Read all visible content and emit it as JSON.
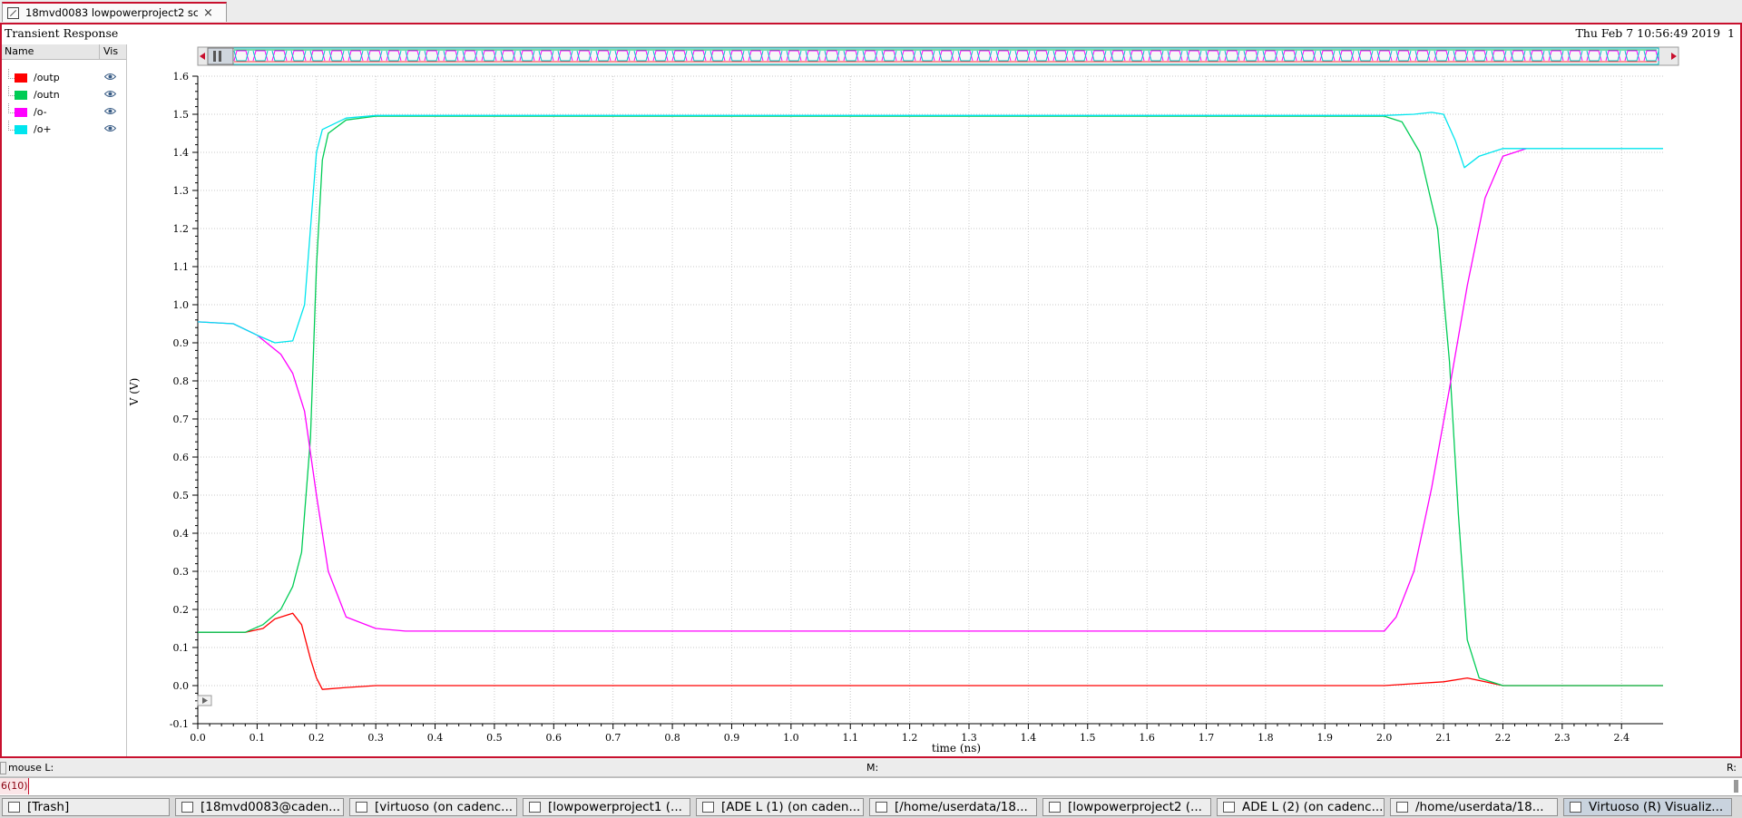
{
  "tab": {
    "title": "18mvd0083 lowpowerproject2 sc...",
    "close": "×"
  },
  "header": {
    "title": "Transient Response",
    "timestamp": "Thu Feb 7 10:56:49 2019",
    "subwin": "1"
  },
  "legend": {
    "col_name": "Name",
    "col_vis": "Vis",
    "items": [
      {
        "name": "/outp",
        "color": "#ff0000"
      },
      {
        "name": "/outn",
        "color": "#00cc55"
      },
      {
        "name": "/o-",
        "color": "#ff00ff"
      },
      {
        "name": "/o+",
        "color": "#00e5ee"
      }
    ]
  },
  "chart_data": {
    "type": "line",
    "xlabel": "time (ns)",
    "ylabel": "V (V)",
    "xlim": [
      0,
      2.47
    ],
    "ylim": [
      -0.1,
      1.6
    ],
    "xticks": [
      "0.0",
      "0.1",
      "0.2",
      "0.3",
      "0.4",
      "0.5",
      "0.6",
      "0.7",
      "0.8",
      "0.9",
      "1.0",
      "1.1",
      "1.2",
      "1.3",
      "1.4",
      "1.5",
      "1.6",
      "1.7",
      "1.8",
      "1.9",
      "2.0",
      "2.1",
      "2.2",
      "2.3",
      "2.4"
    ],
    "yticks": [
      "-0.1",
      "0.0",
      "0.1",
      "0.2",
      "0.3",
      "0.4",
      "0.5",
      "0.6",
      "0.7",
      "0.8",
      "0.9",
      "1.0",
      "1.1",
      "1.2",
      "1.3",
      "1.4",
      "1.5",
      "1.6"
    ],
    "grid": true,
    "series": [
      {
        "name": "/outp",
        "color": "#ff0000",
        "points": [
          [
            0,
            0.14
          ],
          [
            0.08,
            0.14
          ],
          [
            0.11,
            0.15
          ],
          [
            0.13,
            0.175
          ],
          [
            0.16,
            0.19
          ],
          [
            0.175,
            0.16
          ],
          [
            0.19,
            0.07
          ],
          [
            0.2,
            0.02
          ],
          [
            0.21,
            -0.01
          ],
          [
            0.25,
            -0.005
          ],
          [
            0.3,
            0.0
          ],
          [
            2.0,
            0.0
          ],
          [
            2.05,
            0.005
          ],
          [
            2.1,
            0.01
          ],
          [
            2.14,
            0.02
          ],
          [
            2.17,
            0.01
          ],
          [
            2.2,
            0.0
          ],
          [
            2.47,
            0.0
          ]
        ]
      },
      {
        "name": "/outn",
        "color": "#00cc55",
        "points": [
          [
            0,
            0.14
          ],
          [
            0.08,
            0.14
          ],
          [
            0.11,
            0.16
          ],
          [
            0.14,
            0.2
          ],
          [
            0.16,
            0.26
          ],
          [
            0.175,
            0.35
          ],
          [
            0.19,
            0.65
          ],
          [
            0.2,
            1.1
          ],
          [
            0.21,
            1.38
          ],
          [
            0.22,
            1.45
          ],
          [
            0.25,
            1.485
          ],
          [
            0.3,
            1.495
          ],
          [
            2.0,
            1.495
          ],
          [
            2.03,
            1.48
          ],
          [
            2.06,
            1.4
          ],
          [
            2.09,
            1.2
          ],
          [
            2.11,
            0.85
          ],
          [
            2.125,
            0.45
          ],
          [
            2.14,
            0.12
          ],
          [
            2.16,
            0.02
          ],
          [
            2.2,
            0.0
          ],
          [
            2.47,
            0.0
          ]
        ]
      },
      {
        "name": "/o-",
        "color": "#ff00ff",
        "points": [
          [
            0,
            0.955
          ],
          [
            0.06,
            0.95
          ],
          [
            0.1,
            0.92
          ],
          [
            0.14,
            0.87
          ],
          [
            0.16,
            0.82
          ],
          [
            0.18,
            0.72
          ],
          [
            0.2,
            0.5
          ],
          [
            0.22,
            0.3
          ],
          [
            0.25,
            0.18
          ],
          [
            0.3,
            0.15
          ],
          [
            0.35,
            0.143
          ],
          [
            2.0,
            0.143
          ],
          [
            2.02,
            0.18
          ],
          [
            2.05,
            0.3
          ],
          [
            2.08,
            0.52
          ],
          [
            2.11,
            0.78
          ],
          [
            2.14,
            1.05
          ],
          [
            2.17,
            1.28
          ],
          [
            2.2,
            1.39
          ],
          [
            2.24,
            1.41
          ]
        ]
      },
      {
        "name": "/o+",
        "color": "#00e5ee",
        "points": [
          [
            0,
            0.955
          ],
          [
            0.06,
            0.95
          ],
          [
            0.1,
            0.92
          ],
          [
            0.13,
            0.9
          ],
          [
            0.16,
            0.905
          ],
          [
            0.18,
            1.0
          ],
          [
            0.19,
            1.2
          ],
          [
            0.2,
            1.4
          ],
          [
            0.21,
            1.46
          ],
          [
            0.25,
            1.49
          ],
          [
            0.3,
            1.497
          ],
          [
            2.0,
            1.497
          ],
          [
            2.05,
            1.5
          ],
          [
            2.08,
            1.505
          ],
          [
            2.1,
            1.5
          ],
          [
            2.12,
            1.43
          ],
          [
            2.135,
            1.36
          ],
          [
            2.16,
            1.39
          ],
          [
            2.2,
            1.41
          ],
          [
            2.47,
            1.41
          ]
        ]
      }
    ]
  },
  "status": {
    "mouse_l": "mouse L:",
    "mouse_m": "M:",
    "mouse_r": "R:"
  },
  "cmd": {
    "count": "6(10)"
  },
  "taskbar": [
    {
      "label": "[Trash]"
    },
    {
      "label": "[18mvd0083@caden..."
    },
    {
      "label": "[virtuoso (on cadenc..."
    },
    {
      "label": "[lowpowerproject1 (..."
    },
    {
      "label": "[ADE L (1) (on caden..."
    },
    {
      "label": "[/home/userdata/18..."
    },
    {
      "label": "[lowpowerproject2 (..."
    },
    {
      "label": "ADE L (2) (on cadenc..."
    },
    {
      "label": "/home/userdata/18..."
    },
    {
      "label": "Virtuoso (R) Visualiz..."
    }
  ]
}
